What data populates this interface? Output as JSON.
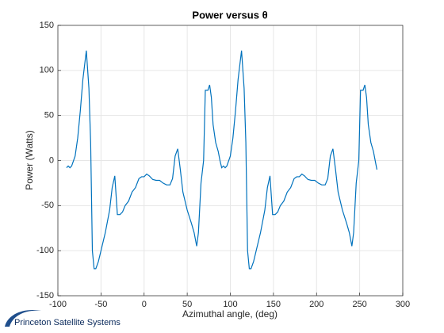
{
  "chart_data": {
    "type": "line",
    "title": "Power versus θ",
    "xlabel": "Azimuthal angle,  (deg)",
    "ylabel": "Power (Watts)",
    "x": [
      -90,
      -88,
      -86,
      -84,
      -80,
      -77,
      -74,
      -71,
      -67,
      -64,
      -62,
      -60,
      -58,
      -56,
      -53,
      -50,
      -45,
      -40,
      -37,
      -34,
      -31,
      -28,
      -25,
      -22,
      -18,
      -14,
      -10,
      -6,
      -3,
      0,
      3,
      6,
      10,
      14,
      18,
      22,
      26,
      30,
      33,
      36,
      39,
      42,
      45,
      50,
      55,
      58,
      61,
      63,
      66,
      69,
      71,
      74,
      76,
      78,
      80,
      83,
      86,
      88,
      90,
      92,
      94,
      96,
      100,
      103,
      106,
      109,
      113,
      116,
      118,
      120,
      122,
      124,
      127,
      130,
      135,
      140,
      143,
      146,
      149,
      152,
      155,
      158,
      162,
      166,
      170,
      174,
      177,
      180,
      183,
      186,
      190,
      194,
      198,
      202,
      206,
      210,
      213,
      216,
      219,
      222,
      225,
      230,
      235,
      238,
      241,
      243,
      246,
      249,
      251,
      254,
      256,
      258,
      260,
      263,
      266,
      268,
      270
    ],
    "series": [
      {
        "name": "Power",
        "color": "#0072bd",
        "values": [
          -8,
          -6,
          -8,
          -6,
          5,
          25,
          55,
          90,
          122,
          80,
          20,
          -100,
          -120,
          -120,
          -112,
          -100,
          -80,
          -55,
          -30,
          -17,
          -60,
          -60,
          -57,
          -50,
          -45,
          -35,
          -30,
          -20,
          -18,
          -18,
          -15,
          -17,
          -21,
          -22,
          -22,
          -25,
          -27,
          -27,
          -20,
          5,
          13,
          -10,
          -35,
          -55,
          -70,
          -80,
          -95,
          -80,
          -25,
          0,
          78,
          78,
          84,
          70,
          40,
          20,
          10,
          0,
          -8,
          -6,
          -8,
          -6,
          5,
          25,
          55,
          90,
          122,
          80,
          20,
          -100,
          -120,
          -120,
          -112,
          -100,
          -80,
          -55,
          -30,
          -17,
          -60,
          -60,
          -57,
          -50,
          -45,
          -35,
          -30,
          -20,
          -18,
          -18,
          -15,
          -17,
          -21,
          -22,
          -22,
          -25,
          -27,
          -27,
          -20,
          5,
          13,
          -10,
          -35,
          -55,
          -70,
          -80,
          -95,
          -80,
          -25,
          0,
          78,
          78,
          84,
          70,
          40,
          20,
          10,
          0,
          -10
        ]
      }
    ],
    "xlim": [
      -100,
      300
    ],
    "xticks": [
      -100,
      -50,
      0,
      50,
      100,
      150,
      200,
      250,
      300
    ],
    "ylim": [
      -150,
      150
    ],
    "yticks": [
      -150,
      -100,
      -50,
      0,
      50,
      100,
      150
    ],
    "grid": true
  },
  "branding": {
    "logo_text": "Princeton Satellite Systems"
  }
}
